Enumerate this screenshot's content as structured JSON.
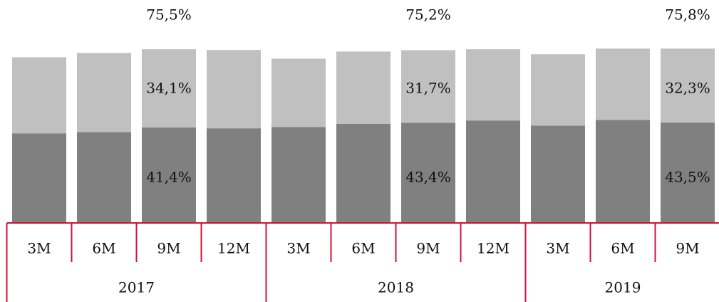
{
  "chart_data": {
    "type": "stacked_bar",
    "groups": [
      {
        "label": "2017",
        "categories": [
          "3M",
          "6M",
          "9M",
          "12M"
        ]
      },
      {
        "label": "2018",
        "categories": [
          "3M",
          "6M",
          "9M",
          "12M"
        ]
      },
      {
        "label": "2019",
        "categories": [
          "3M",
          "6M",
          "9M"
        ]
      }
    ],
    "series": [
      {
        "color": "#808080",
        "values": [
          38.8,
          39.4,
          41.4,
          41.0,
          41.6,
          42.9,
          43.4,
          44.4,
          42.2,
          44.7,
          43.5
        ],
        "value_labels": [
          null,
          null,
          "41,4%",
          null,
          null,
          null,
          "43,4%",
          null,
          null,
          null,
          "43,5%"
        ]
      },
      {
        "color": "#c0c0c0",
        "values": [
          33.2,
          34.5,
          34.1,
          34.2,
          29.8,
          31.6,
          31.7,
          31.1,
          31.1,
          31.1,
          32.3
        ],
        "value_labels": [
          null,
          null,
          "34,1%",
          null,
          null,
          null,
          "31,7%",
          null,
          null,
          null,
          "32,3%"
        ]
      }
    ],
    "totals": [
      null,
      null,
      75.5,
      null,
      null,
      null,
      75.2,
      null,
      null,
      null,
      75.8
    ],
    "total_labels": [
      null,
      null,
      "75,5%",
      null,
      null,
      null,
      "75,2%",
      null,
      null,
      null,
      "75,8%"
    ],
    "ylim": [
      0,
      97
    ],
    "line_color": "#d0103a"
  }
}
